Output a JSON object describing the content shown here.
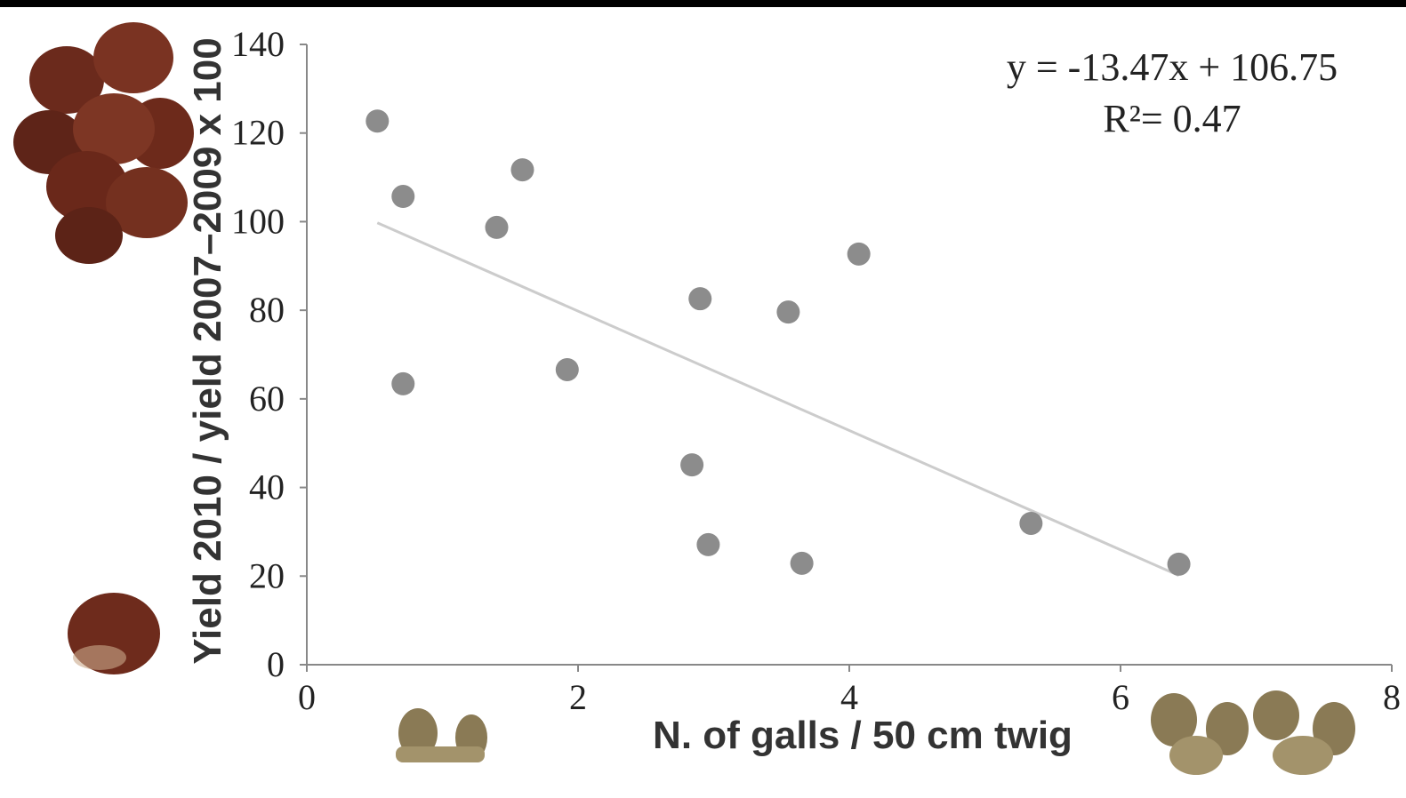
{
  "chart_data": {
    "type": "scatter",
    "x_label": "N. of galls / 50  cm twig",
    "y_label": "Yield 2010 / yield 2007–2009 x 100",
    "x": [
      0.52,
      0.71,
      1.59,
      1.4,
      0.71,
      1.92,
      2.9,
      3.55,
      4.07,
      2.84,
      2.96,
      3.65,
      5.34,
      6.43
    ],
    "series": [
      {
        "color": "#8c8c8c",
        "values": [
          122.7,
          105.7,
          111.7,
          98.7,
          63.4,
          66.6,
          82.6,
          79.6,
          92.7,
          45.1,
          27.1,
          22.9,
          31.9,
          22.7
        ]
      }
    ],
    "trendline": {
      "slope": -13.47,
      "intercept": 106.75,
      "color": "#cccccc",
      "label": "y = -13.47x + 106.75",
      "r2_label": "R²= 0.47"
    },
    "xlim": [
      0,
      8
    ],
    "xticks": [
      0,
      2,
      4,
      6,
      8
    ],
    "ylim": [
      0,
      140
    ],
    "yticks": [
      0,
      20,
      40,
      60,
      80,
      100,
      120,
      140
    ],
    "grid": false
  }
}
